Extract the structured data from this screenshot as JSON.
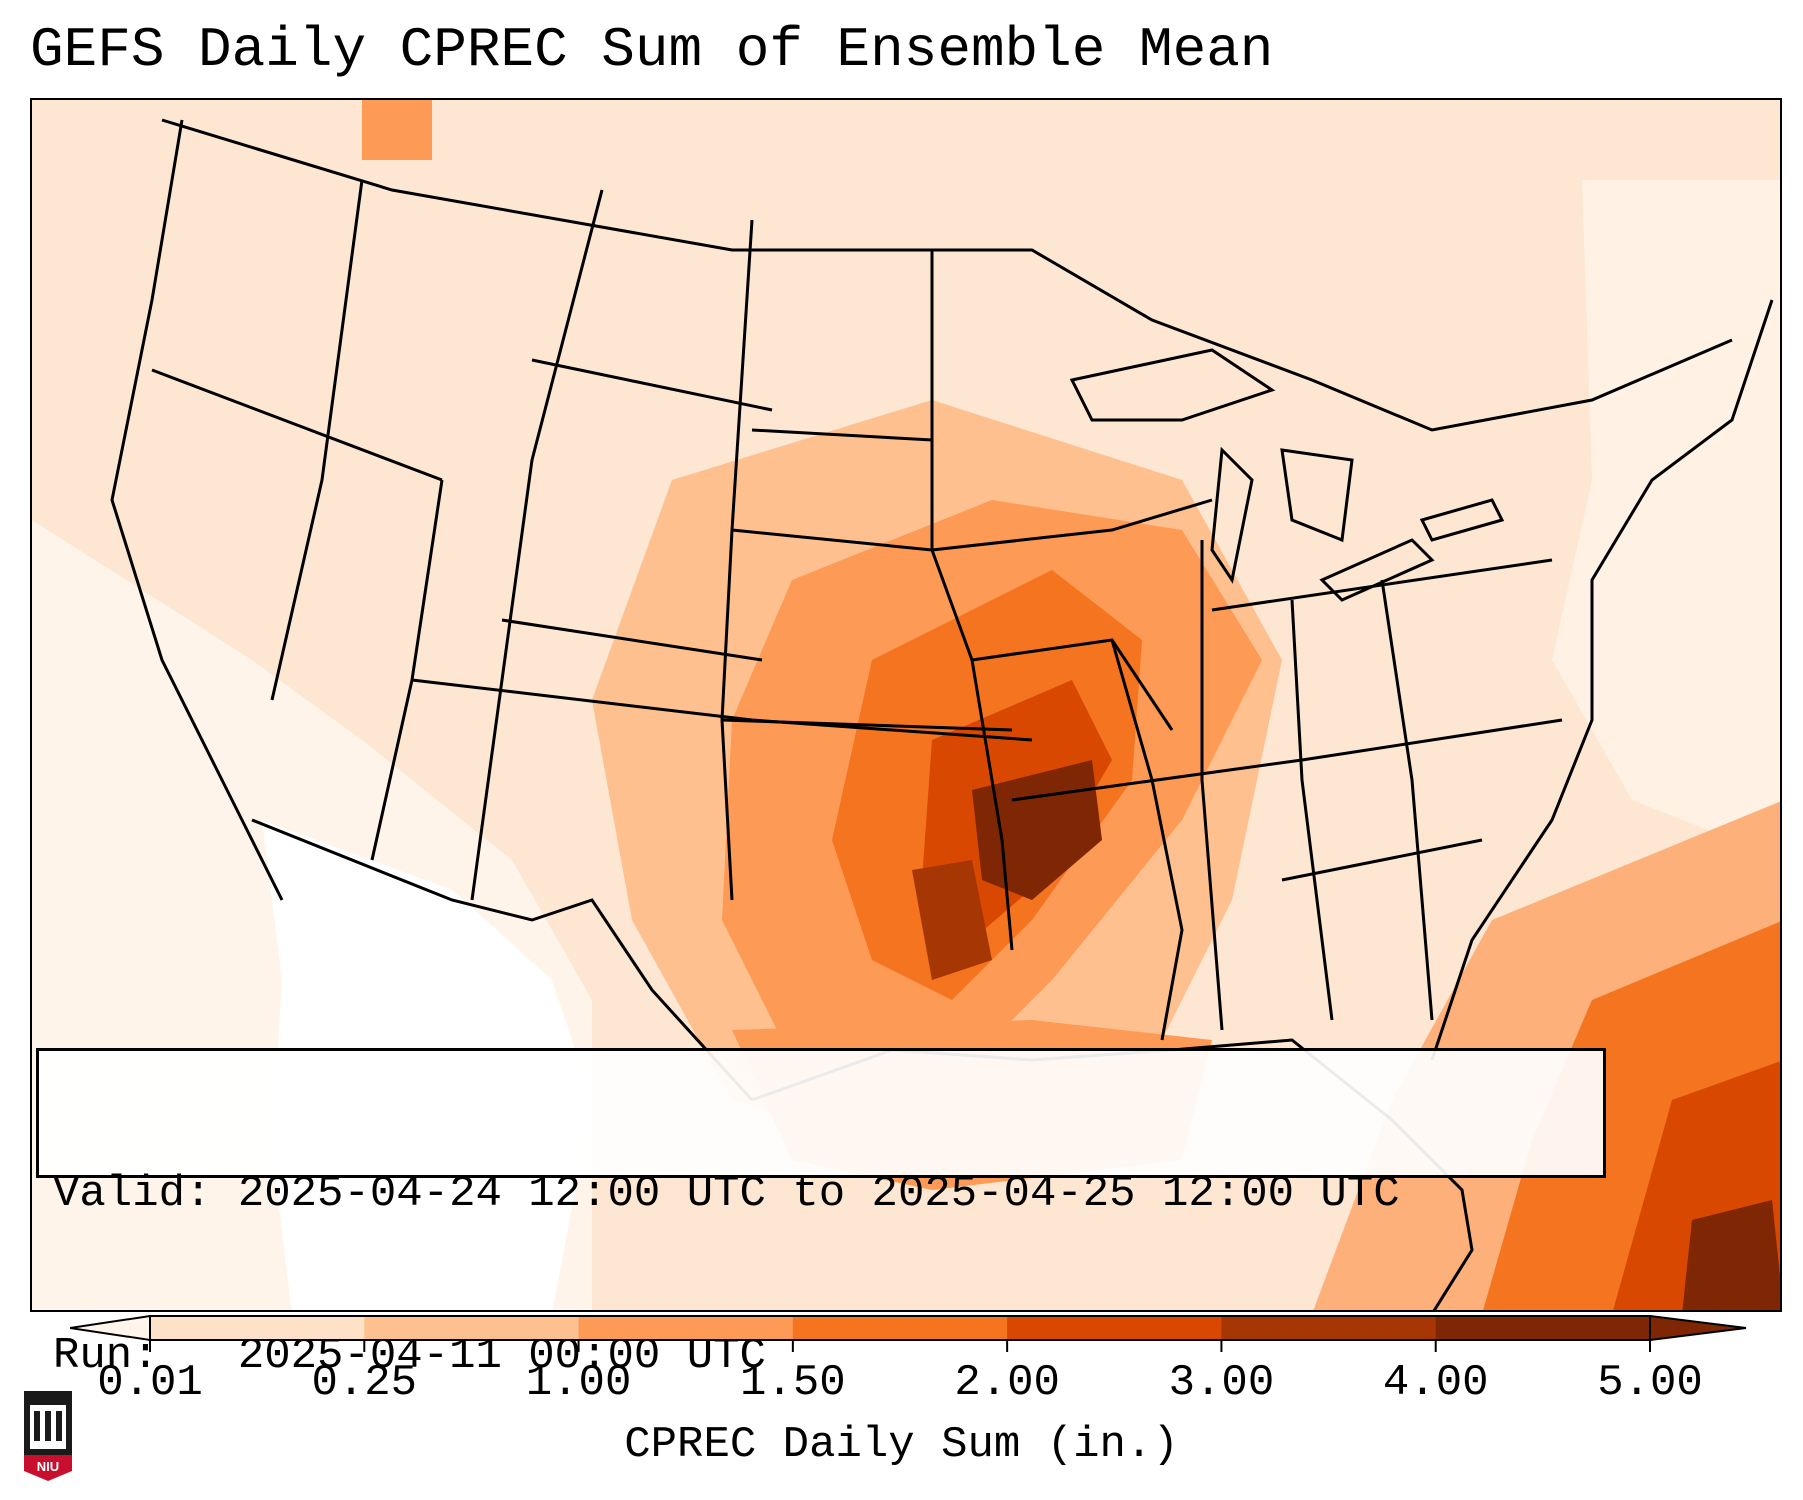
{
  "title": "GEFS Daily CPREC Sum of Ensemble Mean",
  "info": {
    "valid_line": "Valid: 2025-04-24 12:00 UTC to 2025-04-25 12:00 UTC",
    "run_line": "Run:   2025-04-11 00:00 UTC"
  },
  "colorbar": {
    "label": "CPREC Daily Sum (in.)",
    "ticks": [
      "0.01",
      "0.25",
      "1.00",
      "1.50",
      "2.00",
      "3.00",
      "4.00",
      "5.00"
    ],
    "colors": [
      "#fff5eb",
      "#fde2c8",
      "#fdc08e",
      "#fd9a55",
      "#f4741f",
      "#d94801",
      "#a63603",
      "#7f2704"
    ]
  },
  "logo": {
    "text": "NIU"
  }
}
